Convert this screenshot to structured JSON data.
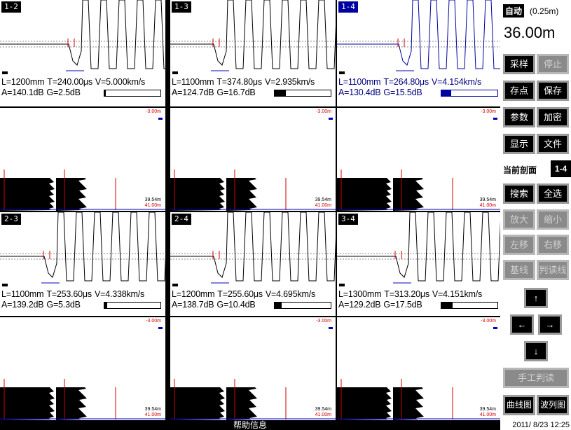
{
  "wave_panels": [
    {
      "label": "1-2",
      "length": "L=1200mm",
      "time": "T=240.00μs",
      "velocity": "V=5.000km/s",
      "amplitude": "A=140.1dB",
      "gain": "G=2.5dB",
      "gain_level": 0.02
    },
    {
      "label": "1-3",
      "length": "L=1100mm",
      "time": "T=374.80μs",
      "velocity": "V=2.935km/s",
      "amplitude": "A=124.7dB",
      "gain": "G=16.7dB",
      "gain_level": 0.2
    },
    {
      "label": "1-4",
      "length": "L=1100mm",
      "time": "T=264.80μs",
      "velocity": "V=4.154km/s",
      "amplitude": "A=130.4dB",
      "gain": "G=15.5dB",
      "gain_level": 0.18,
      "active": true
    },
    {
      "label": "2-3",
      "length": "L=1100mm",
      "time": "T=253.60μs",
      "velocity": "V=4.338km/s",
      "amplitude": "A=139.2dB",
      "gain": "G=5.3dB",
      "gain_level": 0.05
    },
    {
      "label": "2-4",
      "length": "L=1200mm",
      "time": "T=255.60μs",
      "velocity": "V=4.695km/s",
      "amplitude": "A=138.7dB",
      "gain": "G=10.4dB",
      "gain_level": 0.12
    },
    {
      "label": "3-4",
      "length": "L=1300mm",
      "time": "T=313.20μs",
      "velocity": "V=4.151km/s",
      "amplitude": "A=129.2dB",
      "gain": "G=17.5dB",
      "gain_level": 0.2
    }
  ],
  "scan_panels": [
    {
      "depth_top": "-3.00m",
      "depth_a": "39.54m",
      "depth_b": "41.00m"
    },
    {
      "depth_top": "-3.00m",
      "depth_a": "39.54m",
      "depth_b": "41.00m"
    },
    {
      "depth_top": "-3.00m",
      "depth_a": "39.54m",
      "depth_b": "41.00m"
    },
    {
      "depth_top": "-3.00m",
      "depth_a": "39.54m",
      "depth_b": "41.00m"
    },
    {
      "depth_top": "-3.00m",
      "depth_a": "39.54m",
      "depth_b": "41.00m"
    },
    {
      "depth_top": "-3.00m",
      "depth_a": "39.54m",
      "depth_b": "41.00m"
    }
  ],
  "sidebar": {
    "mode": "自动",
    "step": "(0.25m)",
    "depth": "36.00m",
    "current_section_label": "当前剖面",
    "current_section": "1-4",
    "buttons": {
      "sample": "采样",
      "stop": "停止",
      "save_point": "存点",
      "save": "保存",
      "params": "参数",
      "encrypt": "加密",
      "display": "显示",
      "file": "文件",
      "search": "搜索",
      "select_all": "全选",
      "zoom_in": "放大",
      "zoom_out": "缩小",
      "move_left": "左移",
      "move_right": "右移",
      "baseline": "基线",
      "read_line": "判读线",
      "up": "↑",
      "left": "←",
      "right": "→",
      "down": "↓",
      "manual_read": "手工判读",
      "curve_chart": "曲线图",
      "wave_chart": "波列图"
    }
  },
  "status": {
    "help": "帮助信息",
    "datetime": "2011/ 8/23 12:25"
  },
  "colors": {
    "active": "#0000a0",
    "marker_red": "#d00000",
    "marker_blue": "#0000c0",
    "disabled_button": "#8a8a8a"
  }
}
